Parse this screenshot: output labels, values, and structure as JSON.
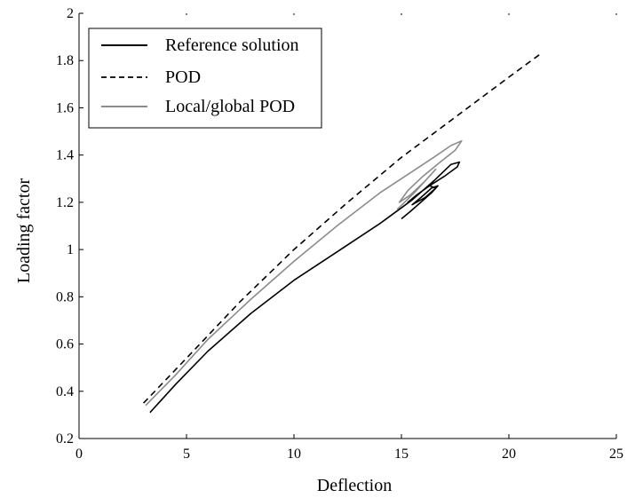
{
  "chart_data": {
    "type": "line",
    "xlabel": "Deflection",
    "ylabel": "Loading factor",
    "xlim": [
      0,
      25
    ],
    "ylim": [
      0.2,
      2
    ],
    "xticks": [
      0,
      5,
      10,
      15,
      20,
      25
    ],
    "yticks": [
      0.2,
      0.4,
      0.6,
      0.8,
      1,
      1.2,
      1.4,
      1.6,
      1.8,
      2
    ],
    "ytick_labels": [
      "0.2",
      "0.4",
      "0.6",
      "0.8",
      "1",
      "1.2",
      "1.4",
      "1.6",
      "1.8",
      "2"
    ],
    "grid": false,
    "legend_position": "top-left",
    "series": [
      {
        "name": "Reference solution",
        "style": "solid",
        "color": "#000000",
        "x": [
          3.3,
          4.5,
          6,
          8,
          10,
          12,
          14,
          15.5,
          16.5,
          17.3,
          17.7,
          17.6,
          17,
          16.3,
          15.7,
          15.3,
          15.7,
          16.3,
          16.6,
          16.1,
          15.5,
          15.9,
          16.4,
          16.7,
          16.4,
          15.9,
          15.4,
          15.0
        ],
        "y": [
          0.31,
          0.43,
          0.57,
          0.73,
          0.87,
          0.99,
          1.11,
          1.21,
          1.29,
          1.36,
          1.37,
          1.35,
          1.31,
          1.27,
          1.23,
          1.2,
          1.23,
          1.27,
          1.26,
          1.22,
          1.19,
          1.22,
          1.26,
          1.27,
          1.24,
          1.2,
          1.16,
          1.13
        ]
      },
      {
        "name": "POD",
        "style": "dashed",
        "color": "#000000",
        "x": [
          3.0,
          5,
          7.5,
          10,
          12.5,
          15,
          17.5,
          20,
          21.5
        ],
        "y": [
          0.35,
          0.54,
          0.78,
          1.0,
          1.2,
          1.39,
          1.56,
          1.73,
          1.83
        ]
      },
      {
        "name": "Local/global POD",
        "style": "solid",
        "color": "#8c8c8c",
        "x": [
          3.1,
          4.5,
          6,
          8,
          10,
          12,
          14,
          15.5,
          16.5,
          17.3,
          17.8,
          17.5,
          16.8,
          16.0,
          15.3,
          14.9,
          15.4,
          16.1,
          16.6,
          16.3,
          15.6,
          14.8
        ],
        "y": [
          0.34,
          0.47,
          0.62,
          0.79,
          0.95,
          1.1,
          1.24,
          1.33,
          1.39,
          1.44,
          1.46,
          1.42,
          1.37,
          1.31,
          1.25,
          1.2,
          1.23,
          1.29,
          1.34,
          1.31,
          1.24,
          1.17
        ]
      }
    ]
  }
}
